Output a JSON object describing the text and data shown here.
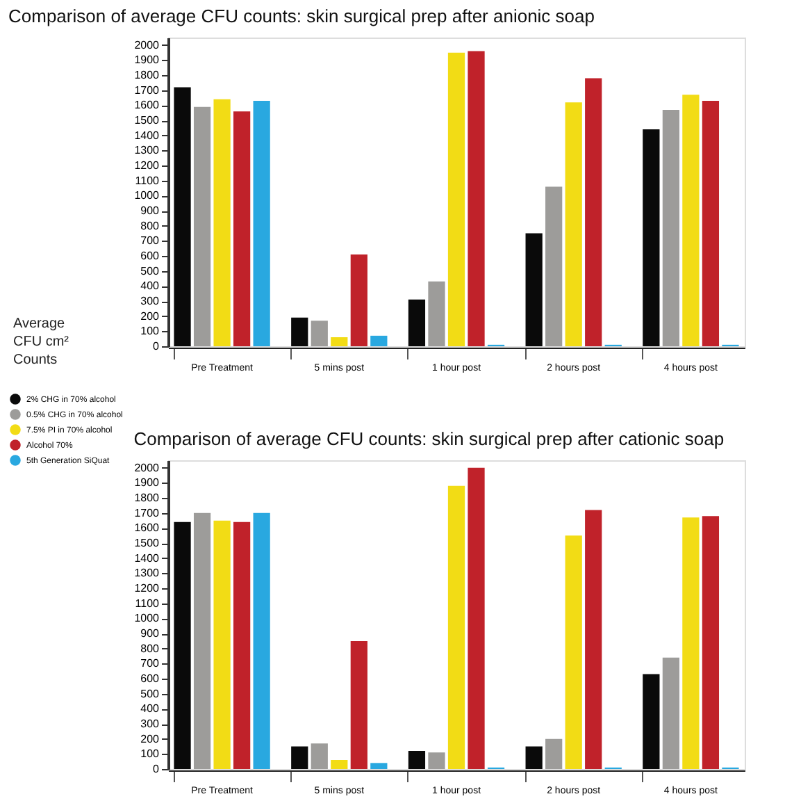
{
  "chart_data": [
    {
      "type": "bar",
      "title": "Comparison of average CFU counts: skin surgical prep after anionic soap",
      "ylabel": "Average CFU cm² Counts",
      "categories": [
        "Pre Treatment",
        "5 mins post",
        "1 hour post",
        "2 hours post",
        "4 hours post"
      ],
      "series": [
        {
          "name": "2% CHG in 70% alcohol",
          "color": "#0a0a0a",
          "values": [
            1720,
            190,
            310,
            750,
            1440
          ]
        },
        {
          "name": "0.5% CHG in 70% alcohol",
          "color": "#9d9c9a",
          "values": [
            1590,
            170,
            430,
            1060,
            1570
          ]
        },
        {
          "name": "7.5% PI in 70% alcohol",
          "color": "#f2dc15",
          "values": [
            1640,
            60,
            1950,
            1620,
            1670
          ]
        },
        {
          "name": "Alcohol 70%",
          "color": "#c0222a",
          "values": [
            1560,
            610,
            1960,
            1780,
            1630
          ]
        },
        {
          "name": "5th Generation SiQuat",
          "color": "#29a8e0",
          "values": [
            1630,
            70,
            10,
            10,
            10
          ]
        }
      ],
      "ylim": [
        0,
        2050
      ],
      "yticks": [
        0,
        100,
        200,
        300,
        400,
        500,
        600,
        700,
        800,
        900,
        1000,
        1100,
        1200,
        1300,
        1400,
        1500,
        1600,
        1700,
        1800,
        1900,
        2000
      ],
      "grid": false,
      "legend": "left"
    },
    {
      "type": "bar",
      "title": "Comparison of average CFU counts: skin surgical prep after cationic soap",
      "categories": [
        "Pre Treatment",
        "5 mins post",
        "1 hour post",
        "2 hours post",
        "4 hours post"
      ],
      "series": [
        {
          "color": "#0a0a0a",
          "values": [
            1640,
            150,
            120,
            150,
            630
          ]
        },
        {
          "color": "#9d9c9a",
          "values": [
            1700,
            170,
            110,
            200,
            740
          ]
        },
        {
          "color": "#f2dc15",
          "values": [
            1650,
            60,
            1880,
            1550,
            1670
          ]
        },
        {
          "color": "#c0222a",
          "values": [
            1640,
            850,
            2000,
            1720,
            1680
          ]
        },
        {
          "color": "#29a8e0",
          "values": [
            1700,
            40,
            10,
            10,
            10
          ]
        }
      ],
      "ylim": [
        0,
        2050
      ],
      "yticks": [
        0,
        100,
        200,
        300,
        400,
        500,
        600,
        700,
        800,
        900,
        1000,
        1100,
        1200,
        1300,
        1400,
        1500,
        1600,
        1700,
        1800,
        1900,
        2000
      ],
      "grid": false,
      "legend": false
    }
  ]
}
